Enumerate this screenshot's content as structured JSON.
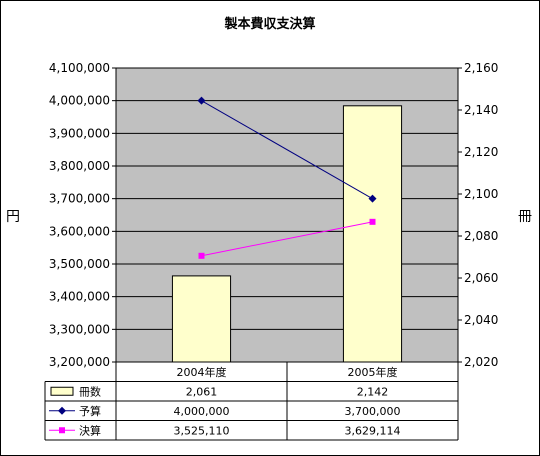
{
  "chart_data": {
    "type": "bar+line",
    "title": "製本費収支決算",
    "categories": [
      "2004年度",
      "2005年度"
    ],
    "left_axis": {
      "label": "円",
      "min": 3200000,
      "max": 4100000,
      "step": 100000,
      "tick_labels": [
        "3,200,000",
        "3,300,000",
        "3,400,000",
        "3,500,000",
        "3,600,000",
        "3,700,000",
        "3,800,000",
        "3,900,000",
        "4,000,000",
        "4,100,000"
      ]
    },
    "right_axis": {
      "label": "冊",
      "min": 2020,
      "max": 2160,
      "step": 20,
      "tick_labels": [
        "2,020",
        "2,040",
        "2,060",
        "2,080",
        "2,100",
        "2,120",
        "2,140",
        "2,160"
      ]
    },
    "grid": true,
    "legend": "data-table",
    "series": [
      {
        "name": "冊数",
        "type": "bar",
        "axis": "right",
        "values": [
          2061,
          2142
        ],
        "display": [
          "2,061",
          "2,142"
        ],
        "color": "#ffffcc"
      },
      {
        "name": "予算",
        "type": "line",
        "axis": "left",
        "marker": "diamond",
        "values": [
          4000000,
          3700000
        ],
        "display": [
          "4,000,000",
          "3,700,000"
        ],
        "color": "#000080"
      },
      {
        "name": "決算",
        "type": "line",
        "axis": "left",
        "marker": "square",
        "values": [
          3525110,
          3629114
        ],
        "display": [
          "3,525,110",
          "3,629,114"
        ],
        "color": "#ff00ff"
      }
    ],
    "plot_background": "#c0c0c0"
  }
}
